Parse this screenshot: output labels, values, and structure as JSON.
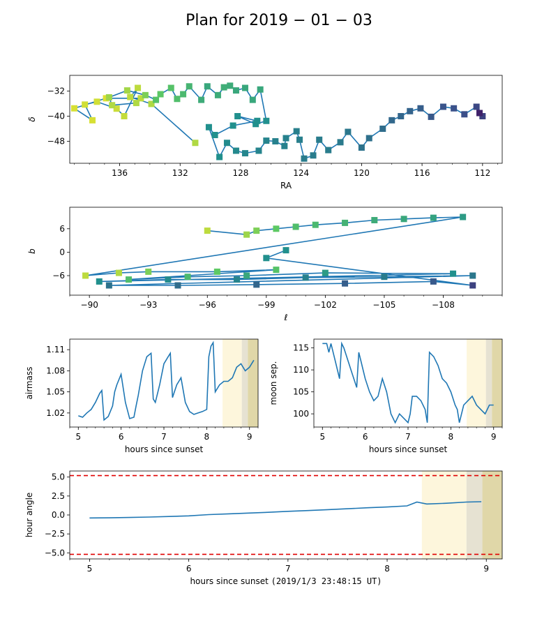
{
  "figure": {
    "title": "Plan for 2019 − 01 − 03"
  },
  "colors": {
    "line": "#1f77b4",
    "limit": "#e00000",
    "twilight": [
      "#fdf6dc",
      "#e6e2d2",
      "#e0d7a8"
    ],
    "viridis": [
      "#440154",
      "#3b528b",
      "#21908d",
      "#5dc963",
      "#fde725"
    ]
  },
  "chart_data": [
    {
      "id": "radec",
      "type": "line",
      "xlabel": "RA",
      "ylabel": "δ",
      "xlim": [
        139.3,
        110.7
      ],
      "ylim": [
        -55,
        -27
      ],
      "xticks": [
        136,
        132,
        128,
        124,
        120,
        116,
        112
      ],
      "yticks": [
        -48,
        -40,
        -32
      ],
      "points": [
        [
          131.0,
          -48.5,
          0.88
        ],
        [
          133.9,
          -36.1,
          0.88
        ],
        [
          135.3,
          -33.9,
          0.9
        ],
        [
          134.8,
          -31.0,
          0.9
        ],
        [
          135.7,
          -40.0,
          0.91
        ],
        [
          136.2,
          -37.6,
          0.92
        ],
        [
          137.5,
          -35.4,
          0.93
        ],
        [
          138.3,
          -36.3,
          0.93
        ],
        [
          137.8,
          -41.3,
          0.94
        ],
        [
          139.0,
          -37.5,
          0.94
        ],
        [
          136.9,
          -34.3,
          0.95
        ],
        [
          134.6,
          -34.3,
          0.9
        ],
        [
          134.9,
          -35.8,
          0.88
        ],
        [
          136.5,
          -36.5,
          0.88
        ],
        [
          136.7,
          -34.0,
          0.85
        ],
        [
          135.5,
          -31.8,
          0.86
        ],
        [
          134.3,
          -33.3,
          0.8
        ],
        [
          133.6,
          -34.8,
          0.72
        ],
        [
          133.3,
          -33.0,
          0.74
        ],
        [
          132.6,
          -31.0,
          0.72
        ],
        [
          132.2,
          -34.5,
          0.7
        ],
        [
          131.8,
          -33.0,
          0.68
        ],
        [
          131.4,
          -30.5,
          0.66
        ],
        [
          130.6,
          -34.8,
          0.62
        ],
        [
          130.2,
          -30.5,
          0.6
        ],
        [
          129.5,
          -33.3,
          0.62
        ],
        [
          129.1,
          -30.8,
          0.63
        ],
        [
          128.7,
          -30.3,
          0.62
        ],
        [
          128.3,
          -31.8,
          0.6
        ],
        [
          127.7,
          -31.0,
          0.6
        ],
        [
          127.2,
          -34.8,
          0.6
        ],
        [
          126.7,
          -31.5,
          0.6
        ],
        [
          126.3,
          -41.5,
          0.5
        ],
        [
          127.0,
          -42.5,
          0.5
        ],
        [
          128.2,
          -40.0,
          0.5
        ],
        [
          126.9,
          -41.5,
          0.5
        ],
        [
          128.5,
          -43.0,
          0.5
        ],
        [
          129.7,
          -46.0,
          0.5
        ],
        [
          130.1,
          -43.5,
          0.5
        ]
      ],
      "points2": [
        [
          129.4,
          -53.0,
          0.5
        ],
        [
          128.9,
          -48.5,
          0.48
        ],
        [
          128.3,
          -51.0,
          0.47
        ],
        [
          127.7,
          -51.8,
          0.46
        ],
        [
          126.8,
          -51.0,
          0.45
        ],
        [
          126.3,
          -47.8,
          0.45
        ],
        [
          125.7,
          -48.0,
          0.44
        ],
        [
          125.1,
          -49.5,
          0.44
        ],
        [
          125.0,
          -47.0,
          0.44
        ],
        [
          124.3,
          -44.8,
          0.43
        ],
        [
          124.1,
          -47.5,
          0.43
        ],
        [
          123.8,
          -53.5,
          0.42
        ],
        [
          123.2,
          -52.5,
          0.42
        ],
        [
          122.8,
          -47.5,
          0.42
        ],
        [
          122.2,
          -50.8,
          0.42
        ],
        [
          121.4,
          -48.3,
          0.41
        ],
        [
          120.9,
          -45.0,
          0.4
        ],
        [
          120.0,
          -50.0,
          0.38
        ],
        [
          119.5,
          -47.0,
          0.37
        ],
        [
          118.6,
          -44.0,
          0.36
        ],
        [
          118.0,
          -41.3,
          0.34
        ],
        [
          117.4,
          -40.0,
          0.33
        ],
        [
          116.8,
          -38.4,
          0.32
        ],
        [
          116.1,
          -37.5,
          0.3
        ],
        [
          115.4,
          -40.2,
          0.28
        ],
        [
          114.6,
          -37.0,
          0.26
        ],
        [
          113.9,
          -37.5,
          0.25
        ],
        [
          113.2,
          -39.4,
          0.24
        ],
        [
          112.4,
          -37.0,
          0.22
        ],
        [
          112.0,
          -40.0,
          0.2
        ],
        [
          112.2,
          -39.0,
          0.1
        ]
      ]
    },
    {
      "id": "galactic",
      "type": "line",
      "xlabel": "ℓ",
      "ylabel": "b",
      "xlim": [
        -89.0,
        -111.0
      ],
      "ylim": [
        -11,
        11.5
      ],
      "xticks": [
        -90,
        -93,
        -96,
        -99,
        -102,
        -105,
        -108
      ],
      "yticks": [
        -6,
        0,
        6
      ],
      "points": [
        [
          -96,
          5.5,
          0.9
        ],
        [
          -98.0,
          4.5,
          0.85
        ],
        [
          -98.5,
          5.5,
          0.8
        ],
        [
          -99.5,
          6.0,
          0.75
        ],
        [
          -100.5,
          6.5,
          0.7
        ],
        [
          -101.5,
          7.0,
          0.68
        ],
        [
          -103.0,
          7.5,
          0.65
        ],
        [
          -104.5,
          8.2,
          0.62
        ],
        [
          -106.0,
          8.5,
          0.6
        ],
        [
          -107.5,
          8.8,
          0.58
        ],
        [
          -109.0,
          9.0,
          0.55
        ],
        [
          -89.8,
          -6.0,
          0.9
        ],
        [
          -91.5,
          -5.3,
          0.88
        ],
        [
          -93.0,
          -5.0,
          0.8
        ],
        [
          -96.5,
          -5.0,
          0.75
        ],
        [
          -99.5,
          -4.5,
          0.72
        ],
        [
          -92.0,
          -7.0,
          0.7
        ],
        [
          -95.0,
          -6.3,
          0.68
        ],
        [
          -98.0,
          -6.0,
          0.6
        ],
        [
          -102.0,
          -5.3,
          0.55
        ],
        [
          -108.5,
          -5.5,
          0.5
        ],
        [
          -90.5,
          -7.5,
          0.5
        ],
        [
          -94.0,
          -7.0,
          0.48
        ],
        [
          -97.5,
          -7.0,
          0.45
        ],
        [
          -101.0,
          -6.5,
          0.44
        ],
        [
          -105.0,
          -6.3,
          0.42
        ],
        [
          -109.5,
          -6.0,
          0.4
        ],
        [
          -91.0,
          -8.5,
          0.38
        ],
        [
          -94.5,
          -8.5,
          0.36
        ],
        [
          -98.5,
          -8.3,
          0.33
        ],
        [
          -103.0,
          -8.0,
          0.3
        ],
        [
          -107.5,
          -7.5,
          0.28
        ],
        [
          -109.5,
          -8.5,
          0.2
        ],
        [
          -99.0,
          -1.5,
          0.5
        ],
        [
          -100.0,
          0.5,
          0.5
        ]
      ]
    },
    {
      "id": "airmass",
      "type": "line",
      "xlabel": "hours since sunset",
      "ylabel": "airmass",
      "xlim": [
        4.8,
        9.2
      ],
      "ylim": [
        1.0,
        1.125
      ],
      "xticks": [
        5,
        6,
        7,
        8,
        9
      ],
      "yticks": [
        1.02,
        1.05,
        1.08,
        1.11
      ],
      "twilight": [
        8.37,
        8.82,
        8.96,
        9.2
      ],
      "x": [
        5.0,
        5.1,
        5.2,
        5.3,
        5.4,
        5.5,
        5.55,
        5.6,
        5.7,
        5.8,
        5.85,
        5.9,
        6.0,
        6.1,
        6.2,
        6.3,
        6.35,
        6.4,
        6.5,
        6.6,
        6.7,
        6.75,
        6.8,
        6.9,
        7.0,
        7.1,
        7.15,
        7.2,
        7.3,
        7.4,
        7.5,
        7.6,
        7.7,
        7.8,
        7.9,
        8.0,
        8.05,
        8.1,
        8.15,
        8.2,
        8.3,
        8.4,
        8.5,
        8.6,
        8.7,
        8.8,
        8.9,
        9.0,
        9.1
      ],
      "y": [
        1.016,
        1.014,
        1.02,
        1.025,
        1.035,
        1.048,
        1.052,
        1.01,
        1.015,
        1.03,
        1.05,
        1.06,
        1.075,
        1.035,
        1.012,
        1.014,
        1.03,
        1.045,
        1.08,
        1.1,
        1.105,
        1.04,
        1.035,
        1.06,
        1.09,
        1.1,
        1.105,
        1.042,
        1.06,
        1.07,
        1.035,
        1.022,
        1.018,
        1.02,
        1.022,
        1.025,
        1.1,
        1.115,
        1.12,
        1.05,
        1.06,
        1.065,
        1.065,
        1.07,
        1.085,
        1.09,
        1.08,
        1.085,
        1.095
      ]
    },
    {
      "id": "moonsep",
      "type": "line",
      "xlabel": "hours since sunset",
      "ylabel": "moon sep.",
      "xlim": [
        4.8,
        9.2
      ],
      "ylim": [
        97,
        117
      ],
      "xticks": [
        5,
        6,
        7,
        8,
        9
      ],
      "yticks": [
        100,
        105,
        110,
        115
      ],
      "twilight": [
        8.37,
        8.82,
        8.96,
        9.2
      ],
      "x": [
        5.0,
        5.1,
        5.15,
        5.2,
        5.3,
        5.4,
        5.45,
        5.5,
        5.6,
        5.7,
        5.8,
        5.85,
        5.9,
        6.0,
        6.1,
        6.2,
        6.3,
        6.4,
        6.5,
        6.6,
        6.7,
        6.8,
        6.9,
        7.0,
        7.05,
        7.1,
        7.2,
        7.3,
        7.4,
        7.45,
        7.5,
        7.6,
        7.7,
        7.8,
        7.9,
        8.0,
        8.1,
        8.15,
        8.2,
        8.3,
        8.4,
        8.5,
        8.6,
        8.7,
        8.8,
        8.9,
        9.0
      ],
      "y": [
        116,
        116,
        114,
        116,
        112,
        108,
        116,
        115,
        112,
        109,
        106,
        114,
        112,
        108,
        105,
        103,
        104,
        108,
        105,
        100,
        98,
        100,
        99,
        98,
        100,
        104,
        104,
        103,
        101,
        98,
        114,
        113,
        111,
        108,
        107,
        105,
        102,
        101,
        98,
        102,
        103,
        104,
        102,
        101,
        100,
        102,
        102
      ]
    },
    {
      "id": "hourangle",
      "type": "line",
      "xlabel": "hours since sunset",
      "xlabel_suffix": "(2019/1/3 23:48:15 UT)",
      "ylabel": "hour angle",
      "xlim": [
        4.8,
        9.16
      ],
      "ylim": [
        -5.8,
        5.8
      ],
      "xticks": [
        5,
        6,
        7,
        8,
        9
      ],
      "yticks": [
        -5.0,
        -2.5,
        0.0,
        2.5,
        5.0
      ],
      "limits": [
        5.2,
        -5.2
      ],
      "twilight": [
        8.35,
        8.8,
        8.96,
        9.16
      ],
      "x": [
        5.0,
        5.2,
        5.4,
        5.6,
        5.8,
        6.0,
        6.2,
        6.4,
        6.6,
        6.8,
        7.0,
        7.2,
        7.4,
        7.6,
        7.8,
        8.0,
        8.2,
        8.3,
        8.4,
        8.6,
        8.8,
        8.95
      ],
      "y": [
        -0.4,
        -0.38,
        -0.33,
        -0.28,
        -0.2,
        -0.12,
        0.05,
        0.15,
        0.25,
        0.35,
        0.48,
        0.58,
        0.7,
        0.82,
        0.95,
        1.05,
        1.2,
        1.7,
        1.45,
        1.55,
        1.7,
        1.75
      ]
    }
  ]
}
